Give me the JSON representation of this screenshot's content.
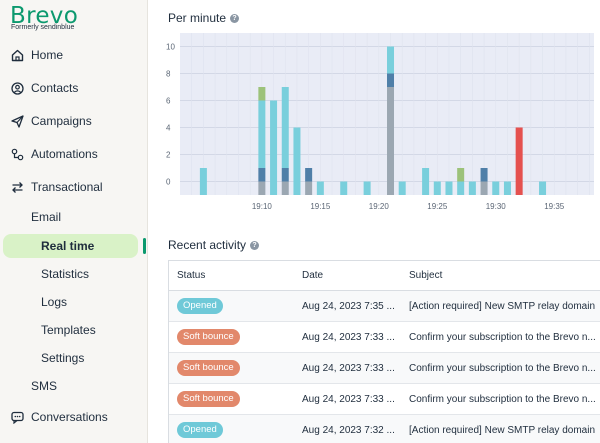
{
  "brand": {
    "name": "Brevo",
    "formerly": "Formerly sendinblue"
  },
  "sidebar": {
    "items": [
      {
        "label": "Home",
        "icon": "home-icon"
      },
      {
        "label": "Contacts",
        "icon": "contacts-icon"
      },
      {
        "label": "Campaigns",
        "icon": "paper-plane-icon"
      },
      {
        "label": "Automations",
        "icon": "automation-icon"
      },
      {
        "label": "Transactional",
        "icon": "arrows-swap-icon"
      }
    ],
    "email_label": "Email",
    "email_subitems": [
      "Real time",
      "Statistics",
      "Logs",
      "Templates",
      "Settings"
    ],
    "sms_label": "SMS",
    "conversations": {
      "label": "Conversations",
      "icon": "chat-icon"
    }
  },
  "per_minute": {
    "title": "Per minute"
  },
  "chart_data": {
    "type": "bar",
    "stacked": true,
    "y_ticks": [
      "10",
      "8",
      "6",
      "4",
      "2",
      "0"
    ],
    "x_ticks": [
      "19:10",
      "19:15",
      "19:20",
      "19:25",
      "19:30",
      "19:35"
    ],
    "ylim": [
      -1,
      11
    ],
    "grid": true,
    "colors": {
      "cyan": "#79cfdc",
      "gray": "#9ba7b2",
      "navy": "#4f7fa8",
      "green": "#9cc27a",
      "red": "#e5514f"
    },
    "bars": [
      {
        "x": 19.05,
        "segments": [
          [
            "cyan",
            2
          ]
        ]
      },
      {
        "x": 19.1,
        "segments": [
          [
            "gray",
            1
          ],
          [
            "navy",
            1
          ],
          [
            "cyan",
            5
          ],
          [
            "green",
            1
          ]
        ]
      },
      {
        "x": 19.11,
        "segments": [
          [
            "cyan",
            7
          ]
        ]
      },
      {
        "x": 19.12,
        "segments": [
          [
            "gray",
            1
          ],
          [
            "navy",
            1
          ],
          [
            "cyan",
            6
          ]
        ]
      },
      {
        "x": 19.13,
        "segments": [
          [
            "cyan",
            5
          ]
        ]
      },
      {
        "x": 19.14,
        "segments": [
          [
            "gray",
            1
          ],
          [
            "navy",
            1
          ]
        ]
      },
      {
        "x": 19.15,
        "segments": [
          [
            "cyan",
            1
          ]
        ]
      },
      {
        "x": 19.17,
        "segments": [
          [
            "cyan",
            1
          ]
        ]
      },
      {
        "x": 19.19,
        "segments": [
          [
            "cyan",
            1
          ]
        ]
      },
      {
        "x": 19.21,
        "segments": [
          [
            "gray",
            8
          ],
          [
            "navy",
            1
          ],
          [
            "cyan",
            2
          ]
        ]
      },
      {
        "x": 19.22,
        "segments": [
          [
            "cyan",
            1
          ]
        ]
      },
      {
        "x": 19.24,
        "segments": [
          [
            "cyan",
            2
          ]
        ]
      },
      {
        "x": 19.25,
        "segments": [
          [
            "cyan",
            1
          ]
        ]
      },
      {
        "x": 19.26,
        "segments": [
          [
            "cyan",
            1
          ]
        ]
      },
      {
        "x": 19.27,
        "segments": [
          [
            "cyan",
            1
          ],
          [
            "green",
            1
          ]
        ]
      },
      {
        "x": 19.28,
        "segments": [
          [
            "cyan",
            1
          ]
        ]
      },
      {
        "x": 19.29,
        "segments": [
          [
            "gray",
            1
          ],
          [
            "navy",
            1
          ]
        ]
      },
      {
        "x": 19.3,
        "segments": [
          [
            "cyan",
            1
          ]
        ]
      },
      {
        "x": 19.31,
        "segments": [
          [
            "cyan",
            1
          ]
        ]
      },
      {
        "x": 19.32,
        "segments": [
          [
            "red",
            5
          ]
        ]
      },
      {
        "x": 19.34,
        "segments": [
          [
            "cyan",
            1
          ]
        ]
      }
    ]
  },
  "recent_activity": {
    "title": "Recent activity",
    "columns": [
      "Status",
      "Date",
      "Subject"
    ],
    "rows": [
      {
        "status": "Opened",
        "kind": "opened",
        "date": "Aug 24, 2023 7:35 ...",
        "subject": "[Action required] New SMTP relay domain"
      },
      {
        "status": "Soft bounce",
        "kind": "soft",
        "date": "Aug 24, 2023 7:33 ...",
        "subject": "Confirm your subscription to the Brevo n..."
      },
      {
        "status": "Soft bounce",
        "kind": "soft",
        "date": "Aug 24, 2023 7:33 ...",
        "subject": "Confirm your subscription to the Brevo n..."
      },
      {
        "status": "Soft bounce",
        "kind": "soft",
        "date": "Aug 24, 2023 7:33 ...",
        "subject": "Confirm your subscription to the Brevo n..."
      },
      {
        "status": "Opened",
        "kind": "opened",
        "date": "Aug 24, 2023 7:32 ...",
        "subject": "[Action required] New SMTP relay domain"
      }
    ]
  }
}
